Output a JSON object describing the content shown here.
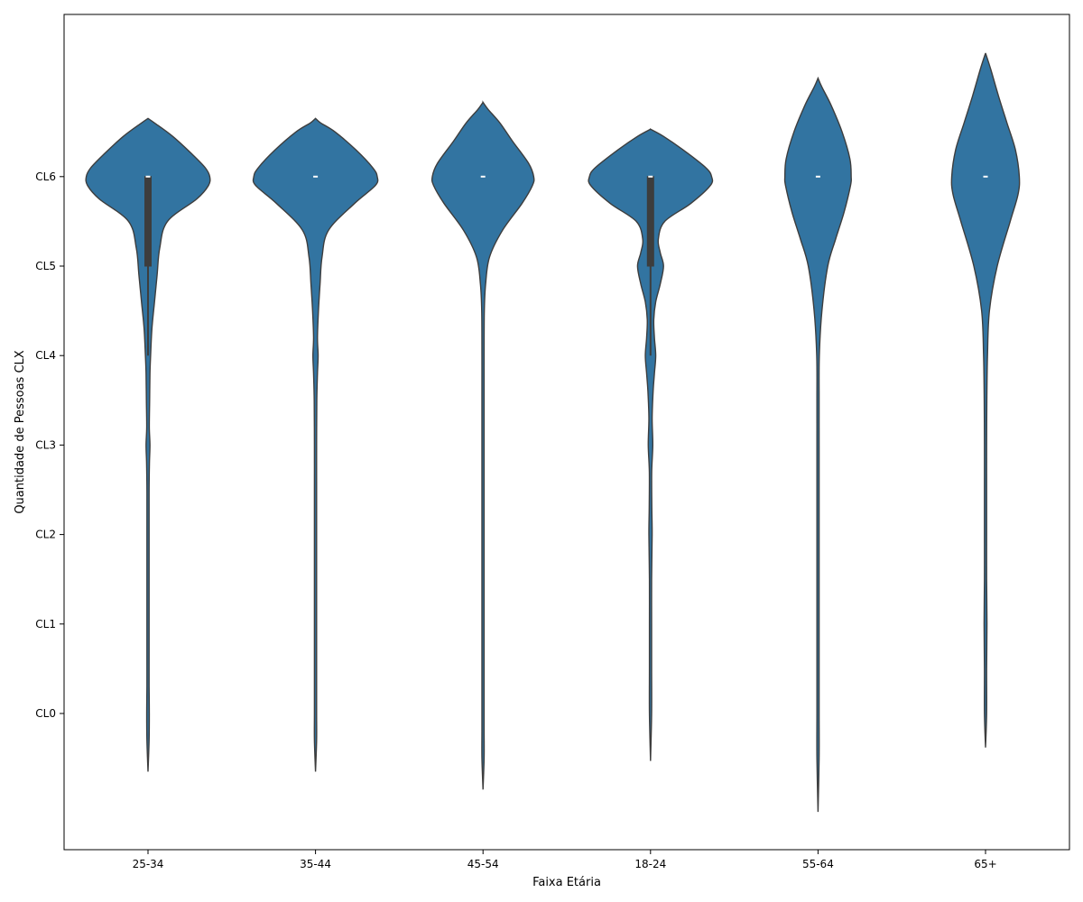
{
  "chart_data": {
    "type": "violin",
    "title": "",
    "xlabel": "Faixa Etária",
    "ylabel": "Quantidade de Pessoas CLX",
    "categories": [
      "25-34",
      "35-44",
      "45-54",
      "18-24",
      "55-64",
      "65+"
    ],
    "y_ticks": [
      "CL0",
      "CL1",
      "CL2",
      "CL3",
      "CL4",
      "CL5",
      "CL6"
    ],
    "ylim": [
      -1.5,
      7.8
    ],
    "violin_color": "#3274a1",
    "edge_color": "#3d3d3d",
    "violins": [
      {
        "category": "25-34",
        "min": -0.65,
        "max": 6.65,
        "box": {
          "q1": 5.0,
          "median": 6.0,
          "q3": 6.0,
          "whisker_low": 4.0,
          "whisker_high": 6.0
        },
        "profile": [
          [
            -0.65,
            0.0
          ],
          [
            -0.3,
            0.01
          ],
          [
            0.0,
            0.02
          ],
          [
            0.3,
            0.01
          ],
          [
            0.7,
            0.005
          ],
          [
            1.0,
            0.005
          ],
          [
            2.0,
            0.008
          ],
          [
            2.5,
            0.012
          ],
          [
            2.8,
            0.022
          ],
          [
            3.0,
            0.03
          ],
          [
            3.2,
            0.02
          ],
          [
            3.5,
            0.025
          ],
          [
            3.8,
            0.03
          ],
          [
            4.0,
            0.04
          ],
          [
            4.3,
            0.06
          ],
          [
            4.6,
            0.1
          ],
          [
            4.9,
            0.14
          ],
          [
            5.2,
            0.18
          ],
          [
            5.5,
            0.3
          ],
          [
            5.75,
            0.75
          ],
          [
            5.9,
            0.93
          ],
          [
            6.0,
            0.95
          ],
          [
            6.1,
            0.88
          ],
          [
            6.25,
            0.68
          ],
          [
            6.45,
            0.38
          ],
          [
            6.6,
            0.1
          ],
          [
            6.65,
            0.0
          ]
        ]
      },
      {
        "category": "35-44",
        "min": -0.65,
        "max": 6.65,
        "box": {
          "q1": 6.0,
          "median": 6.0,
          "q3": 6.0,
          "whisker_low": 6.0,
          "whisker_high": 6.0
        },
        "profile": [
          [
            -0.65,
            0.0
          ],
          [
            -0.3,
            0.005
          ],
          [
            0.0,
            0.01
          ],
          [
            0.5,
            0.005
          ],
          [
            1.0,
            0.01
          ],
          [
            1.5,
            0.005
          ],
          [
            2.0,
            0.008
          ],
          [
            2.5,
            0.01
          ],
          [
            3.0,
            0.015
          ],
          [
            3.5,
            0.02
          ],
          [
            3.8,
            0.03
          ],
          [
            4.0,
            0.04
          ],
          [
            4.2,
            0.03
          ],
          [
            4.5,
            0.045
          ],
          [
            4.8,
            0.07
          ],
          [
            5.1,
            0.1
          ],
          [
            5.4,
            0.2
          ],
          [
            5.7,
            0.6
          ],
          [
            5.9,
            0.92
          ],
          [
            6.0,
            0.95
          ],
          [
            6.1,
            0.88
          ],
          [
            6.3,
            0.62
          ],
          [
            6.5,
            0.3
          ],
          [
            6.6,
            0.08
          ],
          [
            6.65,
            0.0
          ]
        ]
      },
      {
        "category": "45-54",
        "min": -0.85,
        "max": 6.83,
        "box": {
          "q1": 6.0,
          "median": 6.0,
          "q3": 6.0,
          "whisker_low": 6.0,
          "whisker_high": 6.0
        },
        "profile": [
          [
            -0.85,
            0.0
          ],
          [
            -0.5,
            0.005
          ],
          [
            -0.2,
            0.008
          ],
          [
            0.0,
            0.014
          ],
          [
            0.3,
            0.01
          ],
          [
            0.8,
            0.005
          ],
          [
            1.5,
            0.005
          ],
          [
            2.5,
            0.006
          ],
          [
            3.5,
            0.01
          ],
          [
            4.0,
            0.012
          ],
          [
            4.5,
            0.02
          ],
          [
            4.8,
            0.04
          ],
          [
            5.1,
            0.1
          ],
          [
            5.4,
            0.3
          ],
          [
            5.7,
            0.6
          ],
          [
            5.9,
            0.76
          ],
          [
            6.0,
            0.78
          ],
          [
            6.15,
            0.7
          ],
          [
            6.4,
            0.45
          ],
          [
            6.6,
            0.26
          ],
          [
            6.75,
            0.08
          ],
          [
            6.83,
            0.0
          ]
        ]
      },
      {
        "category": "18-24",
        "min": -0.53,
        "max": 6.53,
        "box": {
          "q1": 5.0,
          "median": 6.0,
          "q3": 6.0,
          "whisker_low": 4.0,
          "whisker_high": 6.0
        },
        "profile": [
          [
            -0.53,
            0.0
          ],
          [
            0.0,
            0.005
          ],
          [
            0.5,
            0.005
          ],
          [
            1.0,
            0.005
          ],
          [
            1.5,
            0.01
          ],
          [
            2.0,
            0.025
          ],
          [
            2.3,
            0.02
          ],
          [
            2.7,
            0.018
          ],
          [
            3.0,
            0.035
          ],
          [
            3.3,
            0.025
          ],
          [
            3.6,
            0.04
          ],
          [
            3.8,
            0.06
          ],
          [
            4.0,
            0.08
          ],
          [
            4.2,
            0.06
          ],
          [
            4.4,
            0.05
          ],
          [
            4.6,
            0.08
          ],
          [
            4.8,
            0.15
          ],
          [
            5.0,
            0.2
          ],
          [
            5.15,
            0.15
          ],
          [
            5.3,
            0.12
          ],
          [
            5.5,
            0.22
          ],
          [
            5.7,
            0.62
          ],
          [
            5.9,
            0.92
          ],
          [
            6.0,
            0.94
          ],
          [
            6.1,
            0.85
          ],
          [
            6.3,
            0.5
          ],
          [
            6.45,
            0.2
          ],
          [
            6.53,
            0.0
          ]
        ]
      },
      {
        "category": "55-64",
        "min": -1.1,
        "max": 7.1,
        "box": {
          "q1": 6.0,
          "median": 6.0,
          "q3": 6.0,
          "whisker_low": 6.0,
          "whisker_high": 6.0
        },
        "profile": [
          [
            -1.1,
            0.0
          ],
          [
            -0.5,
            0.005
          ],
          [
            0.0,
            0.012
          ],
          [
            0.5,
            0.012
          ],
          [
            1.0,
            0.01
          ],
          [
            1.5,
            0.01
          ],
          [
            2.0,
            0.01
          ],
          [
            2.5,
            0.013
          ],
          [
            3.0,
            0.015
          ],
          [
            3.5,
            0.012
          ],
          [
            4.0,
            0.02
          ],
          [
            4.5,
            0.06
          ],
          [
            5.0,
            0.15
          ],
          [
            5.3,
            0.27
          ],
          [
            5.6,
            0.4
          ],
          [
            5.9,
            0.5
          ],
          [
            6.0,
            0.51
          ],
          [
            6.2,
            0.49
          ],
          [
            6.5,
            0.37
          ],
          [
            6.8,
            0.2
          ],
          [
            7.0,
            0.06
          ],
          [
            7.1,
            0.0
          ]
        ]
      },
      {
        "category": "65+",
        "min": -0.38,
        "max": 7.38,
        "box": {
          "q1": 6.0,
          "median": 6.0,
          "q3": 6.0,
          "whisker_low": 6.0,
          "whisker_high": 6.0
        },
        "profile": [
          [
            -0.38,
            0.0
          ],
          [
            0.0,
            0.01
          ],
          [
            0.5,
            0.015
          ],
          [
            1.0,
            0.022
          ],
          [
            1.5,
            0.015
          ],
          [
            2.0,
            0.01
          ],
          [
            2.5,
            0.012
          ],
          [
            3.0,
            0.015
          ],
          [
            3.5,
            0.02
          ],
          [
            4.0,
            0.03
          ],
          [
            4.5,
            0.06
          ],
          [
            5.0,
            0.18
          ],
          [
            5.5,
            0.38
          ],
          [
            5.8,
            0.5
          ],
          [
            6.0,
            0.52
          ],
          [
            6.3,
            0.46
          ],
          [
            6.6,
            0.33
          ],
          [
            6.9,
            0.2
          ],
          [
            7.2,
            0.08
          ],
          [
            7.38,
            0.0
          ]
        ]
      }
    ]
  }
}
